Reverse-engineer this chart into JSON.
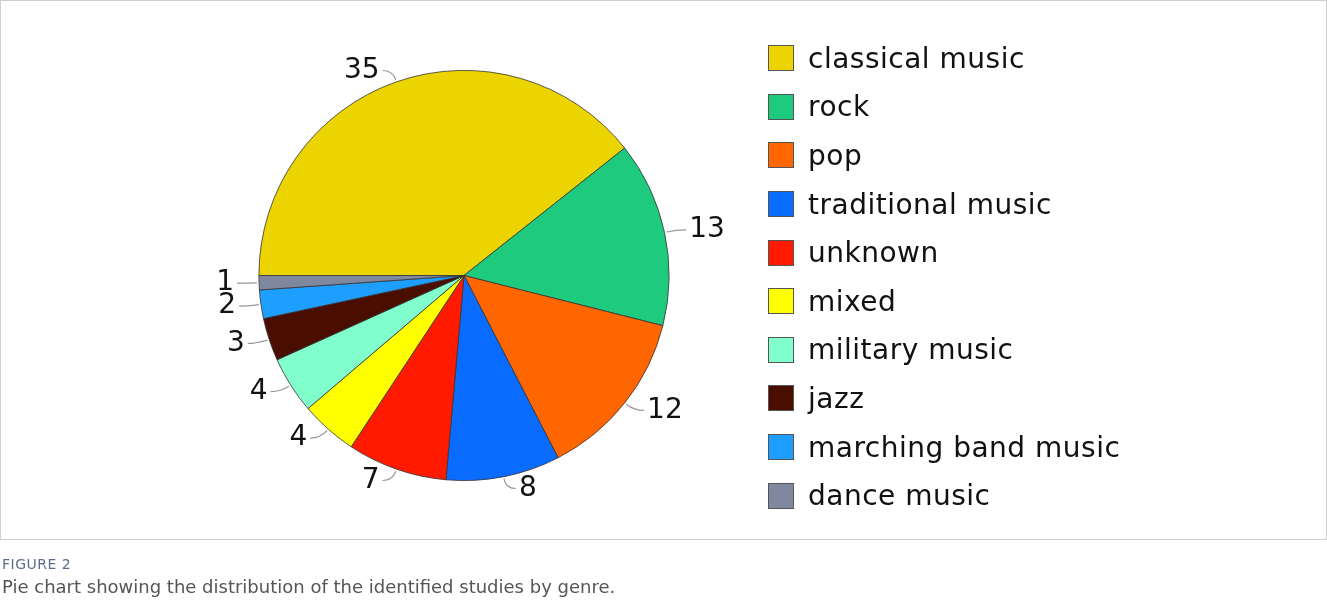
{
  "chart_data": {
    "type": "pie",
    "title": "FIGURE 2",
    "subtitle": "Pie chart showing the distribution of the identified studies by genre.",
    "categories": [
      "classical music",
      "rock",
      "pop",
      "traditional music",
      "unknown",
      "mixed",
      "military music",
      "jazz",
      "marching band music",
      "dance music"
    ],
    "values": [
      35,
      13,
      12,
      8,
      7,
      4,
      4,
      3,
      2,
      1
    ],
    "colors": [
      "#ecd400",
      "#1ecb7e",
      "#ff6600",
      "#0a6cff",
      "#ff1a00",
      "#ffff00",
      "#80ffcc",
      "#4a0e00",
      "#1e9fff",
      "#8088a0"
    ],
    "data_labels": true,
    "legend": "right"
  }
}
